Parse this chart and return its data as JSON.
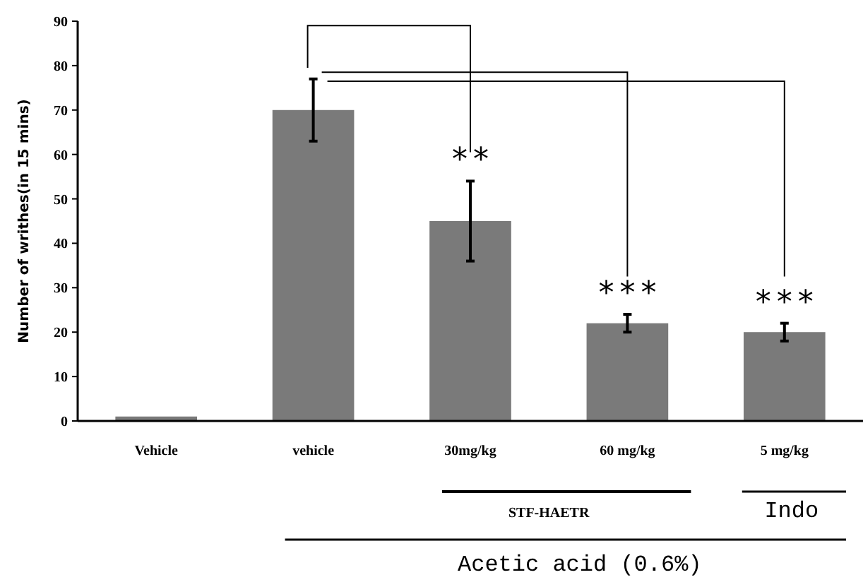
{
  "chart_data": {
    "type": "bar",
    "ylabel": "Number of writhes(in 15 mins)",
    "categories": [
      "Vehicle",
      "vehicle",
      "30mg/kg",
      "60 mg/kg",
      "5 mg/kg"
    ],
    "values": [
      1,
      70,
      45,
      22,
      20
    ],
    "color": "#7a7a7a",
    "errors": [
      null,
      7,
      9,
      2,
      2
    ],
    "ylim": [
      0,
      90
    ],
    "yticks": [
      0,
      10,
      20,
      30,
      40,
      50,
      60,
      70,
      80,
      90
    ],
    "grid": false,
    "annotations": [
      "**",
      "***",
      "***",
      "STF-HAETR",
      "Indo",
      "Acetic acid (0.6%)"
    ]
  }
}
